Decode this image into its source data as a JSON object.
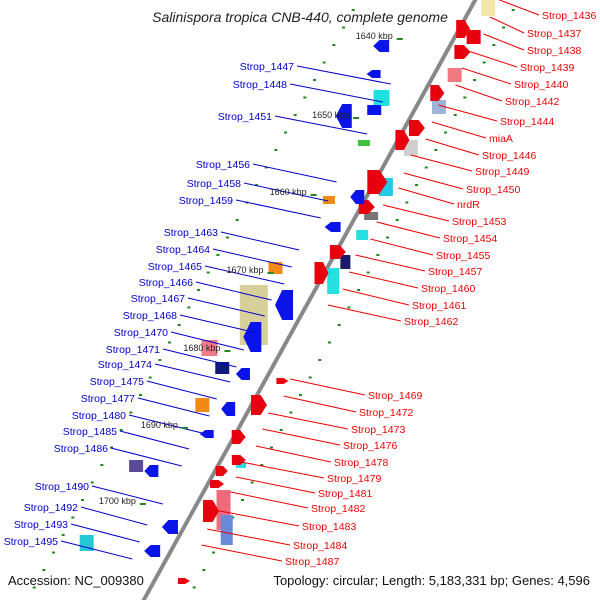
{
  "title": "Salinispora tropica CNB-440, complete genome",
  "accession_label": "Accession: NC_009380",
  "topology_label": "Topology: circular; Length: 5,183,331 bp; Genes: 4,596",
  "colors": {
    "left_label": "#0000cc",
    "right_label": "#ee0000",
    "backbone": "#888888",
    "tick": "#228822"
  },
  "kbp_ticks": [
    "1640 kbp",
    "1650 kbp",
    "1660 kbp",
    "1670 kbp",
    "1680 kbp",
    "1690 kbp",
    "1700 kbp"
  ],
  "left_genes": [
    "Strop_1447",
    "Strop_1448",
    "Strop_1451",
    "Strop_1456",
    "Strop_1458",
    "Strop_1459",
    "Strop_1463",
    "Strop_1464",
    "Strop_1465",
    "Strop_1466",
    "Strop_1467",
    "Strop_1468",
    "Strop_1470",
    "Strop_1471",
    "Strop_1474",
    "Strop_1475",
    "Strop_1477",
    "Strop_1480",
    "Strop_1485",
    "Strop_1486",
    "Strop_1490",
    "Strop_1492",
    "Strop_1493",
    "Strop_1495"
  ],
  "right_genes": [
    "Strop_1436",
    "Strop_1437",
    "Strop_1438",
    "Strop_1439",
    "Strop_1440",
    "Strop_1442",
    "Strop_1444",
    "miaA",
    "Strop_1446",
    "Strop_1449",
    "Strop_1450",
    "nrdR",
    "Strop_1453",
    "Strop_1454",
    "Strop_1455",
    "Strop_1457",
    "Strop_1460",
    "Strop_1461",
    "Strop_1462",
    "Strop_1469",
    "Strop_1472",
    "Strop_1473",
    "Strop_1476",
    "Strop_1478",
    "Strop_1479",
    "Strop_1481",
    "Strop_1482",
    "Strop_1483",
    "Strop_1484",
    "Strop_1487"
  ]
}
